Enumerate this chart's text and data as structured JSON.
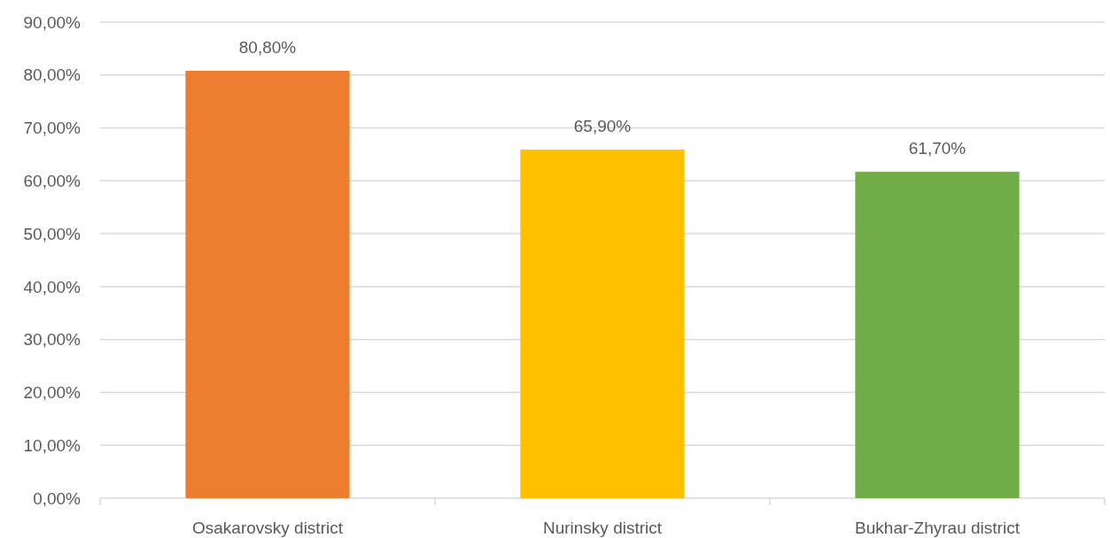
{
  "chart_data": {
    "type": "bar",
    "categories": [
      "Osakarovsky district",
      "Nurinsky district",
      "Bukhar-Zhyrau district"
    ],
    "values": [
      80.8,
      65.9,
      61.7
    ],
    "colors": [
      "#ed7d31",
      "#ffc000",
      "#70ad47"
    ],
    "value_labels": [
      "80,80%",
      "65,90%",
      "61,70%"
    ],
    "ylim": [
      0,
      90
    ],
    "yticks": [
      {
        "value": 0,
        "label": "0,00%"
      },
      {
        "value": 10,
        "label": "10,00%"
      },
      {
        "value": 20,
        "label": "20,00%"
      },
      {
        "value": 30,
        "label": "30,00%"
      },
      {
        "value": 40,
        "label": "40,00%"
      },
      {
        "value": 50,
        "label": "50,00%"
      },
      {
        "value": 60,
        "label": "60,00%"
      },
      {
        "value": 70,
        "label": "70,00%"
      },
      {
        "value": 80,
        "label": "80,00%"
      },
      {
        "value": 90,
        "label": "90,00%"
      }
    ],
    "grid": "y"
  }
}
